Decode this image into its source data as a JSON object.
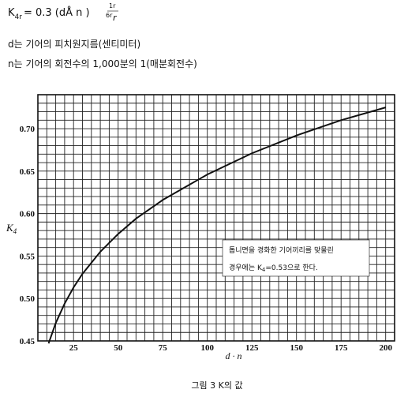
{
  "header": {
    "formula": {
      "k": "K",
      "k_sub": "4r",
      "rest": "= 0.3 (dÅ n )",
      "exp_top": "1r",
      "exp_bottom": "6r",
      "exp_tail": "r"
    },
    "notes": [
      "d는 기어의 피치원지름(센티미터)",
      "n는 기어의 회전수의 1,000분의 1(매분회전수)"
    ]
  },
  "chart_data": {
    "type": "line",
    "ylabel": {
      "text": "K",
      "sub": "4"
    },
    "xlabel": "d · n",
    "caption": "그림 3  K의 값",
    "annotation": {
      "line1": "톱니면을  경화한  기어끼리를  맞물린",
      "line2_a": "경우에는  K",
      "line2_sub": "4",
      "line2_b": "=0.53으로  한다."
    },
    "x": [
      11,
      15,
      20,
      25,
      30,
      40,
      50,
      60,
      75,
      100,
      125,
      150,
      175,
      200
    ],
    "values": [
      0.447,
      0.471,
      0.494,
      0.513,
      0.529,
      0.555,
      0.576,
      0.594,
      0.616,
      0.646,
      0.671,
      0.692,
      0.71,
      0.725
    ],
    "color": "#111111",
    "xlim": [
      5,
      205
    ],
    "ylim": [
      0.45,
      0.74
    ],
    "xticks": [
      25,
      50,
      75,
      100,
      125,
      150,
      175,
      200
    ],
    "yticks": [
      0.45,
      {
        "value": 0.5,
        "label": "0.50"
      },
      0.55,
      {
        "value": 0.6,
        "label": "0.60"
      },
      0.65,
      {
        "value": 0.7,
        "label": "0.70"
      }
    ],
    "xgrid": [
      5,
      10,
      15,
      20,
      25,
      30,
      35,
      40,
      45,
      50,
      55,
      60,
      65,
      70,
      75,
      80,
      85,
      90,
      95,
      100,
      105,
      110,
      115,
      120,
      125,
      130,
      135,
      140,
      145,
      150,
      155,
      160,
      165,
      170,
      175,
      180,
      185,
      190,
      195,
      200,
      205
    ],
    "ygrid": [
      0.45,
      0.46,
      0.47,
      0.48,
      0.49,
      0.5,
      0.51,
      0.52,
      0.53,
      0.54,
      0.55,
      0.56,
      0.57,
      0.58,
      0.59,
      0.6,
      0.61,
      0.62,
      0.63,
      0.64,
      0.65,
      0.66,
      0.67,
      0.68,
      0.69,
      0.7,
      0.71,
      0.72,
      0.73,
      0.74
    ]
  }
}
